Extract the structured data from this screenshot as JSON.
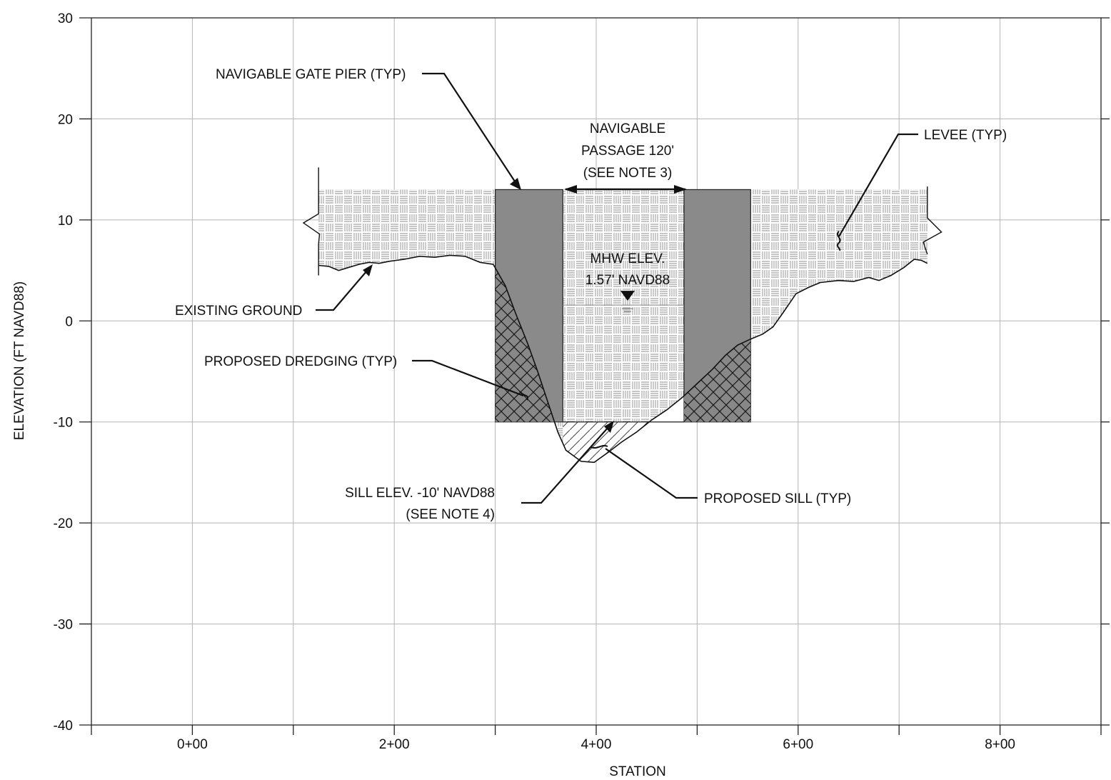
{
  "axes": {
    "y_title": "ELEVATION (FT NAVD88)",
    "x_title": "STATION",
    "y_ticks": [
      "30",
      "20",
      "10",
      "0",
      "-10",
      "-20",
      "-30",
      "-40"
    ],
    "x_ticks": [
      "0+00",
      "2+00",
      "4+00",
      "6+00",
      "8+00"
    ],
    "x_range_ft": [
      -100,
      900
    ],
    "y_range_ft": [
      -40,
      30
    ]
  },
  "labels": {
    "gate_pier": "NAVIGABLE GATE PIER (TYP)",
    "passage_line1": "NAVIGABLE",
    "passage_line2": "PASSAGE 120'",
    "passage_line3": "(SEE NOTE 3)",
    "levee": "LEVEE (TYP)",
    "mhw_line1": "MHW ELEV.",
    "mhw_line2": "1.57' NAVD88",
    "existing_ground": "EXISTING GROUND",
    "dredging": "PROPOSED DREDGING (TYP)",
    "sill_elev_line1": "SILL ELEV. -10' NAVD88",
    "sill_elev_line2": "(SEE NOTE 4)",
    "sill": "PROPOSED SILL (TYP)"
  },
  "design": {
    "levee_top_elev_ft": 13,
    "pier_top_elev_ft": 13,
    "sill_elev_ft": -10,
    "mhw_elev_ft": 1.57,
    "navigable_width_ft": 120,
    "left_pier_station_ft": [
      300,
      367
    ],
    "right_pier_station_ft": [
      487,
      553
    ],
    "levee_extent_station_ft": [
      125,
      728
    ]
  },
  "existing_ground_profile": [
    [
      125,
      5.5
    ],
    [
      135,
      5.4
    ],
    [
      145,
      5.0
    ],
    [
      155,
      5.3
    ],
    [
      165,
      5.6
    ],
    [
      175,
      5.8
    ],
    [
      185,
      5.7
    ],
    [
      195,
      5.9
    ],
    [
      210,
      6.1
    ],
    [
      225,
      6.4
    ],
    [
      240,
      6.3
    ],
    [
      255,
      6.5
    ],
    [
      270,
      6.4
    ],
    [
      285,
      5.8
    ],
    [
      298,
      5.6
    ],
    [
      310,
      3.5
    ],
    [
      320,
      0.8
    ],
    [
      332,
      -2.2
    ],
    [
      342,
      -5.0
    ],
    [
      352,
      -8.0
    ],
    [
      362,
      -11.0
    ],
    [
      370,
      -12.8
    ],
    [
      385,
      -13.9
    ],
    [
      398,
      -14.0
    ],
    [
      412,
      -13.0
    ],
    [
      425,
      -12.0
    ],
    [
      440,
      -11.0
    ],
    [
      455,
      -9.8
    ],
    [
      470,
      -8.8
    ],
    [
      485,
      -7.6
    ],
    [
      500,
      -6.2
    ],
    [
      515,
      -4.8
    ],
    [
      528,
      -3.4
    ],
    [
      540,
      -2.4
    ],
    [
      553,
      -1.8
    ],
    [
      565,
      -1.3
    ],
    [
      575,
      -0.6
    ],
    [
      585,
      0.8
    ],
    [
      598,
      2.7
    ],
    [
      610,
      3.3
    ],
    [
      622,
      3.8
    ],
    [
      640,
      4.0
    ],
    [
      655,
      3.9
    ],
    [
      670,
      4.3
    ],
    [
      680,
      4.0
    ],
    [
      692,
      4.5
    ],
    [
      705,
      5.3
    ],
    [
      715,
      6.1
    ],
    [
      722,
      6.0
    ],
    [
      728,
      5.7
    ]
  ]
}
